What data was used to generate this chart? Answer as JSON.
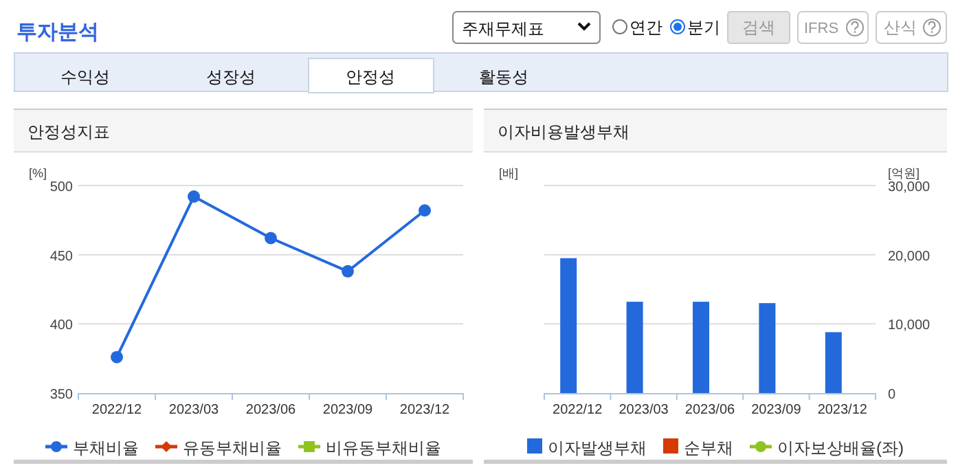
{
  "chart_data": [
    {
      "type": "other",
      "title": "투자분석",
      "annotations": [
        "주재무제표",
        "연간",
        "분기",
        "검색",
        "IFRS",
        "산식",
        "수익성",
        "성장성",
        "안정성",
        "활동성"
      ]
    },
    {
      "type": "line",
      "title": "안정성지표",
      "ylabel": "[%]",
      "categories": [
        "2022/12",
        "2023/03",
        "2023/06",
        "2023/09",
        "2023/12"
      ],
      "ylim": [
        350,
        500
      ],
      "yticks": [
        350,
        400,
        450,
        500
      ],
      "grid": "y",
      "legend": "bottom",
      "line_style": "solid",
      "series": [
        {
          "name": "부채비율",
          "color": "#2469dc",
          "marker": "circle",
          "values": [
            376,
            492,
            462,
            438,
            482
          ]
        },
        {
          "name": "유동부채비율",
          "color": "#d53a00",
          "marker": "diamond",
          "values": [
            null,
            null,
            null,
            null,
            null
          ]
        },
        {
          "name": "비유동부채비율",
          "color": "#8fc31f",
          "marker": "square",
          "values": [
            null,
            null,
            null,
            null,
            null
          ]
        }
      ]
    },
    {
      "type": "bar",
      "title": "이자비용발생부채",
      "ylabel": "[배]",
      "y2label": "[억원]",
      "categories": [
        "2022/12",
        "2023/03",
        "2023/06",
        "2023/09",
        "2023/12"
      ],
      "y2lim": [
        0,
        30000
      ],
      "y2ticks": [
        {
          "value": 0,
          "label": "0"
        },
        {
          "value": 10000,
          "label": "10,000"
        },
        {
          "value": 20000,
          "label": "20,000"
        },
        {
          "value": 30000,
          "label": "30,000"
        }
      ],
      "grid": "y",
      "legend": "bottom",
      "series": [
        {
          "name": "이자발생부채",
          "color": "#2469dc",
          "axis": "y2",
          "values": [
            19500,
            13200,
            13200,
            13000,
            8800
          ]
        },
        {
          "name": "순부채",
          "color": "#d53a00",
          "axis": "y2",
          "values": [
            null,
            null,
            null,
            null,
            null
          ]
        },
        {
          "name": "이자보상배율(좌)",
          "type": "line",
          "marker": "circle",
          "color": "#8fc31f",
          "axis": "y",
          "values": [
            null,
            null,
            null,
            null,
            null
          ]
        }
      ]
    }
  ]
}
